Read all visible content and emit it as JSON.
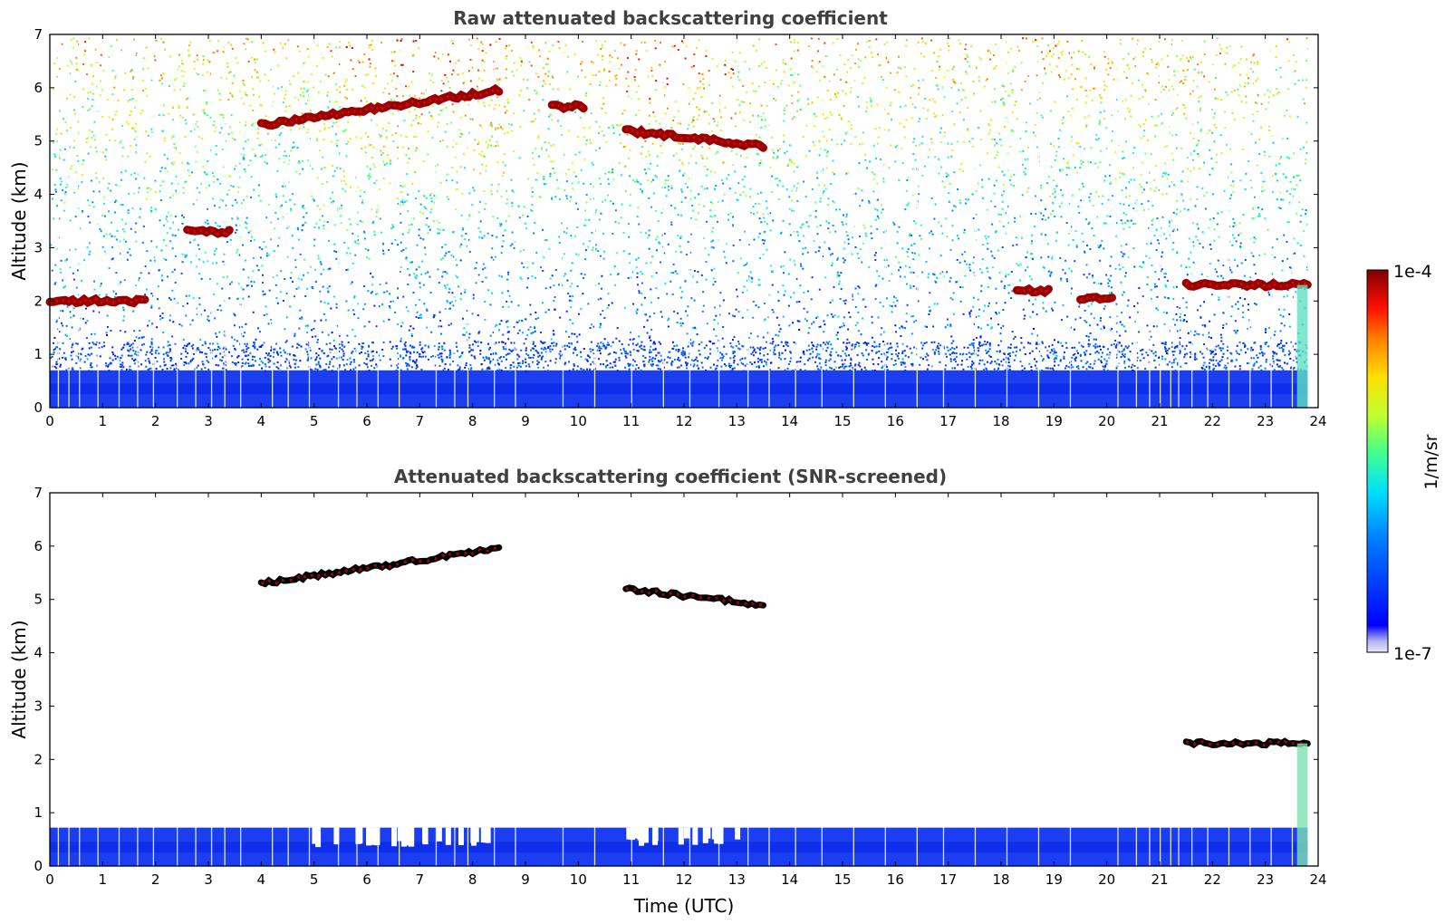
{
  "chart_data": [
    {
      "type": "heatmap",
      "title": "Raw attenuated backscattering coefficient",
      "xlabel": "",
      "ylabel": "Altitude (km)",
      "xlim": [
        0,
        24
      ],
      "ylim": [
        0,
        7
      ],
      "xticks": [
        "0",
        "1",
        "2",
        "3",
        "4",
        "5",
        "6",
        "7",
        "8",
        "9",
        "10",
        "11",
        "12",
        "13",
        "14",
        "15",
        "16",
        "17",
        "18",
        "19",
        "20",
        "21",
        "22",
        "23",
        "24"
      ],
      "yticks": [
        "0",
        "1",
        "2",
        "3",
        "4",
        "5",
        "6",
        "7"
      ],
      "grid": false,
      "features": [
        {
          "kind": "near-surface aerosol layer",
          "t_start": 0,
          "t_end": 23.8,
          "alt_top_km": 0.7
        },
        {
          "kind": "mid-level cloud",
          "t_start": 4.0,
          "t_end": 8.5,
          "alt_km_start": 5.3,
          "alt_km_end": 5.95
        },
        {
          "kind": "mid-level cloud",
          "t_start": 9.5,
          "t_end": 10.1,
          "alt_km": 5.65
        },
        {
          "kind": "mid-level cloud",
          "t_start": 10.9,
          "t_end": 13.5,
          "alt_km_start": 5.2,
          "alt_km_end": 4.9
        },
        {
          "kind": "cloud",
          "t_start": 2.6,
          "t_end": 3.4,
          "alt_km": 3.3
        },
        {
          "kind": "low cloud",
          "t_start": 0.0,
          "t_end": 1.8,
          "alt_km": 2.0
        },
        {
          "kind": "low cloud",
          "t_start": 18.3,
          "t_end": 18.9,
          "alt_km": 2.2
        },
        {
          "kind": "low cloud",
          "t_start": 19.5,
          "t_end": 20.1,
          "alt_km": 2.05
        },
        {
          "kind": "low cloud",
          "t_start": 21.5,
          "t_end": 23.8,
          "alt_km": 2.3
        }
      ]
    },
    {
      "type": "heatmap",
      "title": "Attenuated backscattering coefficient (SNR-screened)",
      "xlabel": "Time (UTC)",
      "ylabel": "Altitude (km)",
      "xlim": [
        0,
        24
      ],
      "ylim": [
        0,
        7
      ],
      "xticks": [
        "0",
        "1",
        "2",
        "3",
        "4",
        "5",
        "6",
        "7",
        "8",
        "9",
        "10",
        "11",
        "12",
        "13",
        "14",
        "15",
        "16",
        "17",
        "18",
        "19",
        "20",
        "21",
        "22",
        "23",
        "24"
      ],
      "yticks": [
        "0",
        "1",
        "2",
        "3",
        "4",
        "5",
        "6",
        "7"
      ],
      "grid": false,
      "features": [
        {
          "kind": "near-surface aerosol layer",
          "t_start": 0,
          "t_end": 23.8,
          "alt_top_km": 0.72
        },
        {
          "kind": "mid-level cloud",
          "t_start": 4.0,
          "t_end": 8.5,
          "alt_km_start": 5.3,
          "alt_km_end": 5.95
        },
        {
          "kind": "mid-level cloud",
          "t_start": 10.9,
          "t_end": 13.5,
          "alt_km_start": 5.2,
          "alt_km_end": 4.9
        },
        {
          "kind": "low cloud",
          "t_start": 21.5,
          "t_end": 23.8,
          "alt_km": 2.3
        }
      ]
    }
  ],
  "colorbar": {
    "label": "1/m/sr",
    "max_label": "1e-4",
    "min_label": "1e-7",
    "colormap": "jet",
    "colors": [
      "#e8e8fa",
      "#b0b0f0",
      "#0000ff",
      "#0080ff",
      "#00e0ff",
      "#40ff90",
      "#c0ff30",
      "#ffe000",
      "#ff8000",
      "#ff1000",
      "#800000"
    ]
  },
  "mask_color": "#ffffff",
  "snr_edge_color": "#000000"
}
